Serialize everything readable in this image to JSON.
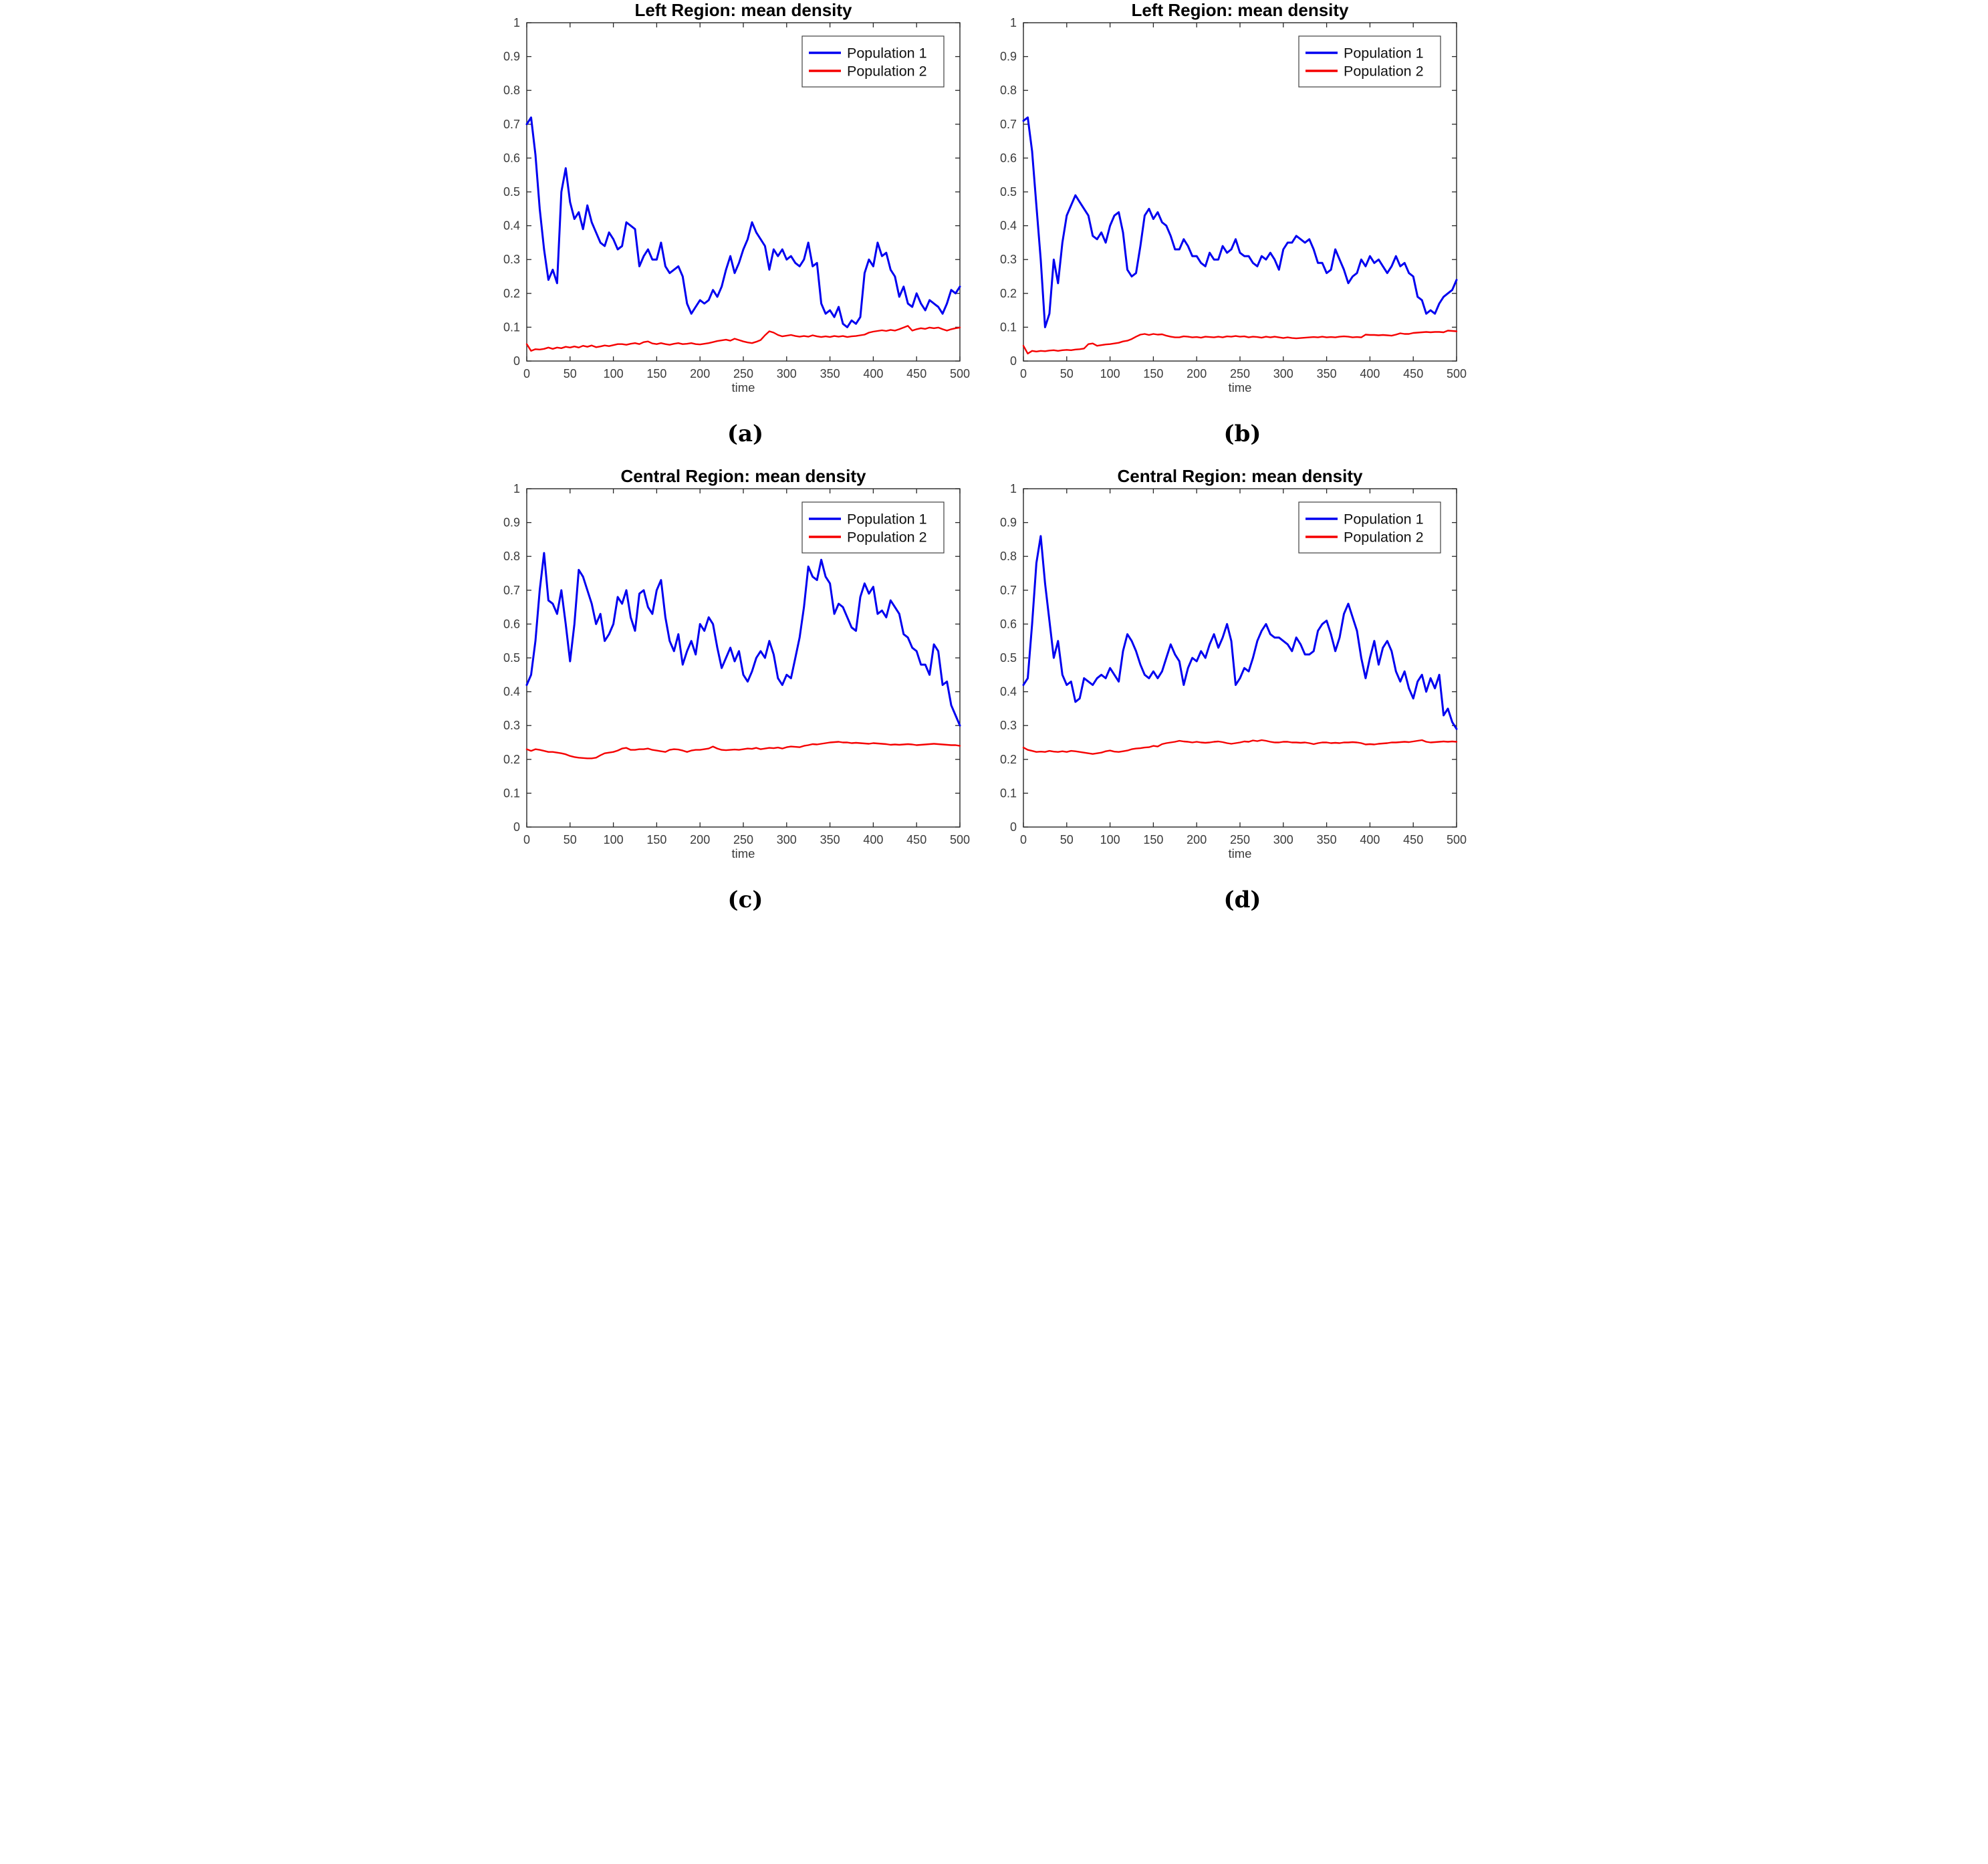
{
  "page": {
    "background": "#ffffff"
  },
  "colors": {
    "population1": "#0000f0",
    "population2": "#f50000",
    "axis_frame": "#262626",
    "tick_label": "#3b3b3b",
    "title_text": "#000000",
    "legend_border": "#404040",
    "legend_background": "#ffffff"
  },
  "axes": {
    "xlabel": "time",
    "xlim": [
      0,
      500
    ],
    "ylim": [
      0,
      1
    ],
    "xticks": [
      0,
      50,
      100,
      150,
      200,
      250,
      300,
      350,
      400,
      450,
      500
    ],
    "xtick_labels": [
      "0",
      "50",
      "100",
      "150",
      "200",
      "250",
      "300",
      "350",
      "400",
      "450",
      "500"
    ],
    "yticks": [
      0,
      0.1,
      0.2,
      0.3,
      0.4,
      0.5,
      0.6,
      0.7,
      0.8,
      0.9,
      1
    ],
    "ytick_labels": [
      "0",
      "0.1",
      "0.2",
      "0.3",
      "0.4",
      "0.5",
      "0.6",
      "0.7",
      "0.8",
      "0.9",
      "1"
    ],
    "grid": false,
    "box": true,
    "legend_position": "top-right"
  },
  "chart_data": [
    {
      "id": "a",
      "caption": "(a)",
      "type": "line",
      "title": "Left Region: mean density",
      "xlabel": "time",
      "xlim": [
        0,
        500
      ],
      "ylim": [
        0,
        1
      ],
      "x_start": 0,
      "x_step": 5,
      "series": [
        {
          "name": "Population 1",
          "color": "#0000f0",
          "values": [
            0.7,
            0.72,
            0.61,
            0.45,
            0.33,
            0.24,
            0.27,
            0.23,
            0.5,
            0.57,
            0.47,
            0.42,
            0.44,
            0.39,
            0.46,
            0.41,
            0.38,
            0.35,
            0.34,
            0.38,
            0.36,
            0.33,
            0.34,
            0.41,
            0.4,
            0.39,
            0.28,
            0.31,
            0.33,
            0.3,
            0.3,
            0.35,
            0.28,
            0.26,
            0.27,
            0.28,
            0.25,
            0.17,
            0.14,
            0.16,
            0.18,
            0.17,
            0.18,
            0.21,
            0.19,
            0.22,
            0.27,
            0.31,
            0.26,
            0.29,
            0.33,
            0.36,
            0.41,
            0.38,
            0.36,
            0.34,
            0.27,
            0.33,
            0.31,
            0.33,
            0.3,
            0.31,
            0.29,
            0.28,
            0.3,
            0.35,
            0.28,
            0.29,
            0.17,
            0.14,
            0.15,
            0.13,
            0.16,
            0.11,
            0.1,
            0.12,
            0.11,
            0.13,
            0.26,
            0.3,
            0.28,
            0.35,
            0.31,
            0.32,
            0.27,
            0.25,
            0.19,
            0.22,
            0.17,
            0.16,
            0.2,
            0.17,
            0.15,
            0.18,
            0.17,
            0.16,
            0.14,
            0.17,
            0.21,
            0.2,
            0.22
          ]
        },
        {
          "name": "Population 2",
          "color": "#f50000",
          "values": [
            0.05,
            0.03,
            0.035,
            0.034,
            0.036,
            0.04,
            0.036,
            0.04,
            0.038,
            0.042,
            0.04,
            0.043,
            0.04,
            0.045,
            0.042,
            0.046,
            0.041,
            0.043,
            0.046,
            0.044,
            0.047,
            0.05,
            0.05,
            0.048,
            0.051,
            0.053,
            0.05,
            0.056,
            0.058,
            0.052,
            0.05,
            0.053,
            0.05,
            0.048,
            0.051,
            0.053,
            0.05,
            0.051,
            0.053,
            0.05,
            0.049,
            0.051,
            0.053,
            0.056,
            0.059,
            0.061,
            0.063,
            0.06,
            0.066,
            0.062,
            0.058,
            0.055,
            0.053,
            0.057,
            0.062,
            0.076,
            0.088,
            0.084,
            0.077,
            0.073,
            0.075,
            0.077,
            0.074,
            0.072,
            0.074,
            0.072,
            0.076,
            0.073,
            0.071,
            0.073,
            0.071,
            0.074,
            0.072,
            0.074,
            0.071,
            0.073,
            0.074,
            0.076,
            0.078,
            0.084,
            0.087,
            0.089,
            0.091,
            0.089,
            0.092,
            0.09,
            0.094,
            0.099,
            0.104,
            0.09,
            0.094,
            0.097,
            0.095,
            0.099,
            0.097,
            0.099,
            0.094,
            0.09,
            0.094,
            0.097,
            0.099
          ]
        }
      ]
    },
    {
      "id": "b",
      "caption": "(b)",
      "type": "line",
      "title": "Left Region: mean density",
      "xlabel": "time",
      "xlim": [
        0,
        500
      ],
      "ylim": [
        0,
        1
      ],
      "x_start": 0,
      "x_step": 5,
      "series": [
        {
          "name": "Population 1",
          "color": "#0000f0",
          "values": [
            0.71,
            0.72,
            0.62,
            0.46,
            0.3,
            0.1,
            0.14,
            0.3,
            0.23,
            0.35,
            0.43,
            0.46,
            0.49,
            0.47,
            0.45,
            0.43,
            0.37,
            0.36,
            0.38,
            0.35,
            0.4,
            0.43,
            0.44,
            0.38,
            0.27,
            0.25,
            0.26,
            0.34,
            0.43,
            0.45,
            0.42,
            0.44,
            0.41,
            0.4,
            0.37,
            0.33,
            0.33,
            0.36,
            0.34,
            0.31,
            0.31,
            0.29,
            0.28,
            0.32,
            0.3,
            0.3,
            0.34,
            0.32,
            0.33,
            0.36,
            0.32,
            0.31,
            0.31,
            0.29,
            0.28,
            0.31,
            0.3,
            0.32,
            0.3,
            0.27,
            0.33,
            0.35,
            0.35,
            0.37,
            0.36,
            0.35,
            0.36,
            0.33,
            0.29,
            0.29,
            0.26,
            0.27,
            0.33,
            0.3,
            0.27,
            0.23,
            0.25,
            0.26,
            0.3,
            0.28,
            0.31,
            0.29,
            0.3,
            0.28,
            0.26,
            0.28,
            0.31,
            0.28,
            0.29,
            0.26,
            0.25,
            0.19,
            0.18,
            0.14,
            0.15,
            0.14,
            0.17,
            0.19,
            0.2,
            0.21,
            0.24
          ]
        },
        {
          "name": "Population 2",
          "color": "#f50000",
          "values": [
            0.045,
            0.022,
            0.03,
            0.028,
            0.03,
            0.029,
            0.031,
            0.032,
            0.03,
            0.032,
            0.033,
            0.032,
            0.034,
            0.035,
            0.037,
            0.05,
            0.052,
            0.045,
            0.047,
            0.049,
            0.05,
            0.052,
            0.054,
            0.058,
            0.06,
            0.065,
            0.072,
            0.078,
            0.08,
            0.077,
            0.08,
            0.078,
            0.079,
            0.075,
            0.072,
            0.07,
            0.07,
            0.073,
            0.072,
            0.07,
            0.071,
            0.069,
            0.072,
            0.071,
            0.07,
            0.072,
            0.07,
            0.073,
            0.072,
            0.074,
            0.072,
            0.073,
            0.07,
            0.072,
            0.071,
            0.069,
            0.072,
            0.07,
            0.072,
            0.07,
            0.068,
            0.07,
            0.068,
            0.067,
            0.068,
            0.069,
            0.07,
            0.071,
            0.07,
            0.072,
            0.07,
            0.071,
            0.07,
            0.072,
            0.073,
            0.072,
            0.07,
            0.071,
            0.07,
            0.078,
            0.077,
            0.077,
            0.076,
            0.077,
            0.076,
            0.075,
            0.078,
            0.082,
            0.08,
            0.08,
            0.083,
            0.084,
            0.085,
            0.086,
            0.085,
            0.086,
            0.086,
            0.085,
            0.09,
            0.089,
            0.088
          ]
        }
      ]
    },
    {
      "id": "c",
      "caption": "(c)",
      "type": "line",
      "title": "Central Region: mean density",
      "xlabel": "time",
      "xlim": [
        0,
        500
      ],
      "ylim": [
        0,
        1
      ],
      "x_start": 0,
      "x_step": 5,
      "series": [
        {
          "name": "Population 1",
          "color": "#0000f0",
          "values": [
            0.42,
            0.45,
            0.55,
            0.7,
            0.81,
            0.67,
            0.66,
            0.63,
            0.7,
            0.6,
            0.49,
            0.6,
            0.76,
            0.74,
            0.7,
            0.66,
            0.6,
            0.63,
            0.55,
            0.57,
            0.6,
            0.68,
            0.66,
            0.7,
            0.62,
            0.58,
            0.69,
            0.7,
            0.65,
            0.63,
            0.7,
            0.73,
            0.62,
            0.55,
            0.52,
            0.57,
            0.48,
            0.52,
            0.55,
            0.51,
            0.6,
            0.58,
            0.62,
            0.6,
            0.53,
            0.47,
            0.5,
            0.53,
            0.49,
            0.52,
            0.45,
            0.43,
            0.46,
            0.5,
            0.52,
            0.5,
            0.55,
            0.51,
            0.44,
            0.42,
            0.45,
            0.44,
            0.5,
            0.56,
            0.65,
            0.77,
            0.74,
            0.73,
            0.79,
            0.74,
            0.72,
            0.63,
            0.66,
            0.65,
            0.62,
            0.59,
            0.58,
            0.68,
            0.72,
            0.69,
            0.71,
            0.63,
            0.64,
            0.62,
            0.67,
            0.65,
            0.63,
            0.57,
            0.56,
            0.53,
            0.52,
            0.48,
            0.48,
            0.45,
            0.54,
            0.52,
            0.42,
            0.43,
            0.36,
            0.33,
            0.3
          ]
        },
        {
          "name": "Population 2",
          "color": "#f50000",
          "values": [
            0.23,
            0.225,
            0.23,
            0.228,
            0.225,
            0.222,
            0.222,
            0.22,
            0.218,
            0.215,
            0.21,
            0.207,
            0.205,
            0.204,
            0.203,
            0.203,
            0.205,
            0.212,
            0.218,
            0.22,
            0.222,
            0.226,
            0.232,
            0.234,
            0.228,
            0.228,
            0.23,
            0.23,
            0.232,
            0.228,
            0.226,
            0.224,
            0.222,
            0.228,
            0.23,
            0.229,
            0.226,
            0.222,
            0.226,
            0.228,
            0.228,
            0.23,
            0.232,
            0.238,
            0.232,
            0.228,
            0.227,
            0.228,
            0.229,
            0.228,
            0.23,
            0.232,
            0.231,
            0.234,
            0.23,
            0.232,
            0.234,
            0.233,
            0.235,
            0.232,
            0.236,
            0.238,
            0.237,
            0.236,
            0.24,
            0.242,
            0.245,
            0.244,
            0.246,
            0.248,
            0.25,
            0.251,
            0.252,
            0.25,
            0.25,
            0.248,
            0.249,
            0.248,
            0.247,
            0.246,
            0.248,
            0.247,
            0.246,
            0.245,
            0.243,
            0.244,
            0.243,
            0.244,
            0.245,
            0.244,
            0.242,
            0.243,
            0.244,
            0.245,
            0.246,
            0.245,
            0.244,
            0.243,
            0.242,
            0.242,
            0.24
          ]
        }
      ]
    },
    {
      "id": "d",
      "caption": "(d)",
      "type": "line",
      "title": "Central Region: mean density",
      "xlabel": "time",
      "xlim": [
        0,
        500
      ],
      "ylim": [
        0,
        1
      ],
      "x_start": 0,
      "x_step": 5,
      "series": [
        {
          "name": "Population 1",
          "color": "#0000f0",
          "values": [
            0.42,
            0.44,
            0.6,
            0.78,
            0.86,
            0.72,
            0.61,
            0.5,
            0.55,
            0.45,
            0.42,
            0.43,
            0.37,
            0.38,
            0.44,
            0.43,
            0.42,
            0.44,
            0.45,
            0.44,
            0.47,
            0.45,
            0.43,
            0.52,
            0.57,
            0.55,
            0.52,
            0.48,
            0.45,
            0.44,
            0.46,
            0.44,
            0.46,
            0.5,
            0.54,
            0.51,
            0.49,
            0.42,
            0.47,
            0.5,
            0.49,
            0.52,
            0.5,
            0.54,
            0.57,
            0.53,
            0.56,
            0.6,
            0.55,
            0.42,
            0.44,
            0.47,
            0.46,
            0.5,
            0.55,
            0.58,
            0.6,
            0.57,
            0.56,
            0.56,
            0.55,
            0.54,
            0.52,
            0.56,
            0.54,
            0.51,
            0.51,
            0.52,
            0.58,
            0.6,
            0.61,
            0.57,
            0.52,
            0.56,
            0.63,
            0.66,
            0.62,
            0.58,
            0.5,
            0.44,
            0.5,
            0.55,
            0.48,
            0.53,
            0.55,
            0.52,
            0.46,
            0.43,
            0.46,
            0.41,
            0.38,
            0.43,
            0.45,
            0.4,
            0.44,
            0.41,
            0.45,
            0.33,
            0.35,
            0.31,
            0.29
          ]
        },
        {
          "name": "Population 2",
          "color": "#f50000",
          "values": [
            0.235,
            0.228,
            0.225,
            0.222,
            0.223,
            0.222,
            0.225,
            0.223,
            0.222,
            0.224,
            0.222,
            0.225,
            0.224,
            0.222,
            0.22,
            0.218,
            0.216,
            0.218,
            0.22,
            0.224,
            0.226,
            0.223,
            0.222,
            0.224,
            0.226,
            0.23,
            0.232,
            0.233,
            0.235,
            0.236,
            0.24,
            0.238,
            0.245,
            0.248,
            0.25,
            0.252,
            0.255,
            0.253,
            0.252,
            0.25,
            0.252,
            0.25,
            0.249,
            0.25,
            0.252,
            0.253,
            0.251,
            0.248,
            0.246,
            0.248,
            0.25,
            0.253,
            0.252,
            0.256,
            0.254,
            0.257,
            0.255,
            0.252,
            0.25,
            0.25,
            0.252,
            0.252,
            0.25,
            0.25,
            0.249,
            0.25,
            0.248,
            0.245,
            0.248,
            0.25,
            0.25,
            0.248,
            0.249,
            0.248,
            0.25,
            0.25,
            0.251,
            0.25,
            0.248,
            0.244,
            0.245,
            0.244,
            0.246,
            0.247,
            0.248,
            0.25,
            0.25,
            0.251,
            0.252,
            0.251,
            0.253,
            0.255,
            0.257,
            0.252,
            0.25,
            0.251,
            0.252,
            0.253,
            0.252,
            0.253,
            0.252
          ]
        }
      ]
    }
  ]
}
